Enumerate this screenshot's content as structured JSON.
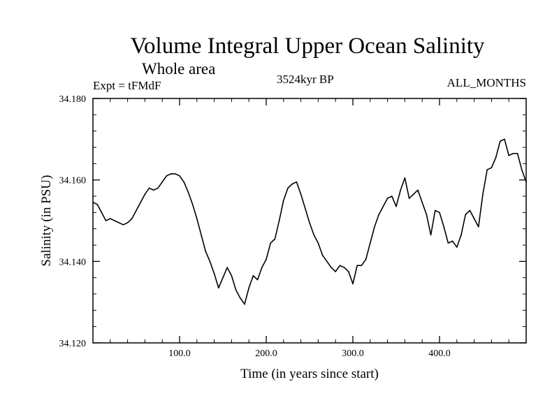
{
  "chart_data": {
    "type": "line",
    "title": "Volume Integral Upper Ocean Salinity",
    "subtitle": "Whole area",
    "annotations": {
      "experiment": "Expt = tFMdF",
      "period": "3524kyr BP",
      "months": "ALL_MONTHS"
    },
    "xlabel": "Time (in years since start)",
    "ylabel": "Salinity (in PSU)",
    "xlim": [
      0,
      500
    ],
    "ylim": [
      34.12,
      34.18
    ],
    "x_ticks": [
      100,
      200,
      300,
      400
    ],
    "x_tick_labels": [
      "100.0",
      "200.0",
      "300.0",
      "400.0"
    ],
    "y_ticks": [
      34.12,
      34.14,
      34.16,
      34.18
    ],
    "y_tick_labels": [
      "34.120",
      "34.140",
      "34.160",
      "34.180"
    ],
    "grid": false,
    "series": [
      {
        "name": "Salinity",
        "x": [
          0,
          5,
          10,
          15,
          20,
          25,
          30,
          35,
          40,
          45,
          50,
          55,
          60,
          65,
          70,
          75,
          80,
          85,
          90,
          95,
          100,
          105,
          110,
          115,
          120,
          125,
          130,
          135,
          140,
          145,
          150,
          155,
          160,
          165,
          170,
          175,
          180,
          185,
          190,
          195,
          200,
          205,
          210,
          215,
          220,
          225,
          230,
          235,
          240,
          245,
          250,
          255,
          260,
          265,
          270,
          275,
          280,
          285,
          290,
          295,
          300,
          305,
          310,
          315,
          320,
          325,
          330,
          335,
          340,
          345,
          350,
          355,
          360,
          365,
          370,
          375,
          380,
          385,
          390,
          395,
          400,
          405,
          410,
          415,
          420,
          425,
          430,
          435,
          440,
          445,
          450,
          455,
          460,
          465,
          470,
          475,
          480,
          485,
          490,
          495,
          500
        ],
        "values": [
          34.1545,
          34.154,
          34.152,
          34.15,
          34.1505,
          34.15,
          34.1495,
          34.149,
          34.1495,
          34.1505,
          34.1525,
          34.1545,
          34.1565,
          34.158,
          34.1575,
          34.158,
          34.1595,
          34.161,
          34.1615,
          34.1615,
          34.161,
          34.1595,
          34.157,
          34.154,
          34.1505,
          34.1465,
          34.1425,
          34.14,
          34.137,
          34.1335,
          34.136,
          34.1385,
          34.1365,
          34.133,
          34.131,
          34.1295,
          34.1335,
          34.1365,
          34.1355,
          34.1385,
          34.1405,
          34.1445,
          34.1455,
          34.15,
          34.155,
          34.158,
          34.159,
          34.1595,
          34.1565,
          34.153,
          34.1495,
          34.1465,
          34.1445,
          34.1415,
          34.14,
          34.1385,
          34.1375,
          34.139,
          34.1385,
          34.1375,
          34.1345,
          34.139,
          34.139,
          34.1405,
          34.1445,
          34.1485,
          34.1515,
          34.1535,
          34.1555,
          34.156,
          34.1535,
          34.1575,
          34.1605,
          34.1555,
          34.1565,
          34.1575,
          34.1545,
          34.1515,
          34.1465,
          34.1525,
          34.152,
          34.1485,
          34.1445,
          34.145,
          34.1435,
          34.1465,
          34.1515,
          34.1525,
          34.1505,
          34.1485,
          34.1565,
          34.1625,
          34.163,
          34.1655,
          34.1695,
          34.17,
          34.166,
          34.1665,
          34.1665,
          34.1625,
          34.1595
        ]
      }
    ]
  }
}
